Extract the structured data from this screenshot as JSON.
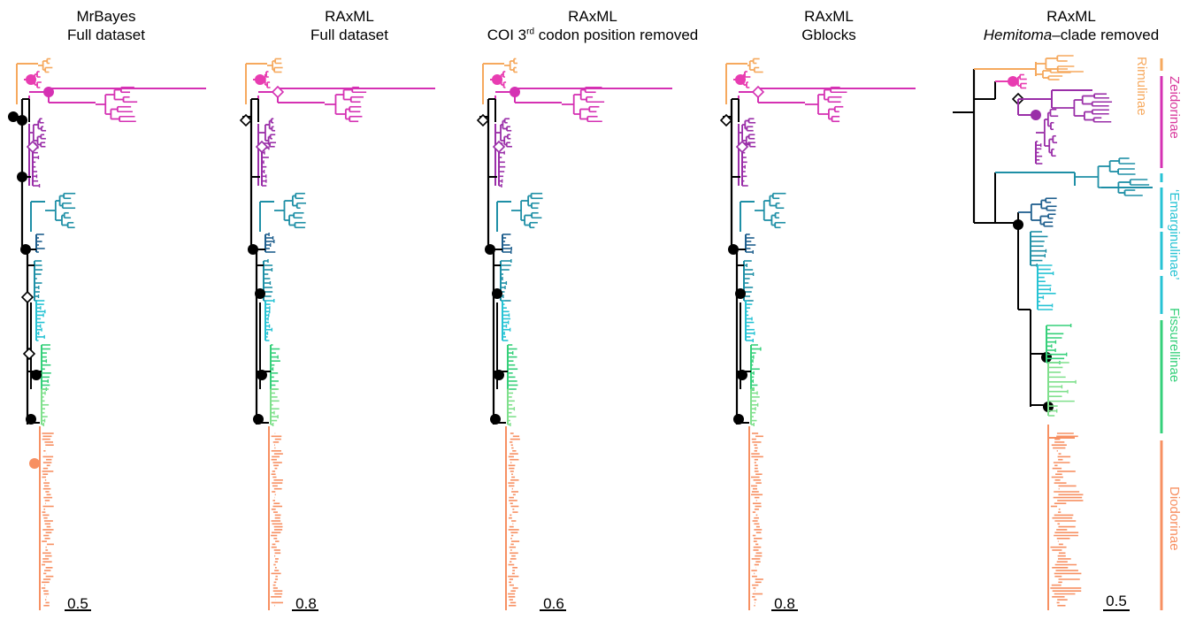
{
  "panels": [
    {
      "title_line1": "MrBayes",
      "title_line2": "Full dataset",
      "scale": "0.5"
    },
    {
      "title_line1": "RAxML",
      "title_line2": "Full dataset",
      "scale": "0.8"
    },
    {
      "title_line1": "RAxML",
      "title_line2_pre": "COI 3",
      "title_line2_sup": "rd",
      "title_line2_post": " codon position removed",
      "scale": "0.6"
    },
    {
      "title_line1": "RAxML",
      "title_line2": "Gblocks",
      "scale": "0.8"
    },
    {
      "title_line1": "RAxML",
      "title_line2_italic": "Hemitoma",
      "title_line2_post": "–clade removed",
      "scale": "0.5"
    }
  ],
  "clades": [
    {
      "name": "Rimulinae",
      "color": "#f6a95e"
    },
    {
      "name": "Zeidorinae",
      "color": "#d8389c"
    },
    {
      "name": "‘Emarginulinae’",
      "color": "#27c3d4"
    },
    {
      "name": "Fissurellinae",
      "color": "#35d07a"
    },
    {
      "name": "Diodorinae",
      "color": "#f79062"
    }
  ],
  "colors": {
    "rimulinae": "#f6a95e",
    "zeidorinae_pink": "#e83cb1",
    "zeidorinae_magenta": "#d531b3",
    "zeidorinae_purple": "#9a2ea8",
    "emarg_teal": "#1e8fa6",
    "emarg_navy": "#1f5f8e",
    "emarg_cyan": "#27c3d4",
    "fissurellinae_green": "#35d07a",
    "fissurellinae_light": "#7fe08c",
    "diodorinae": "#f79062",
    "backbone": "#000000"
  }
}
